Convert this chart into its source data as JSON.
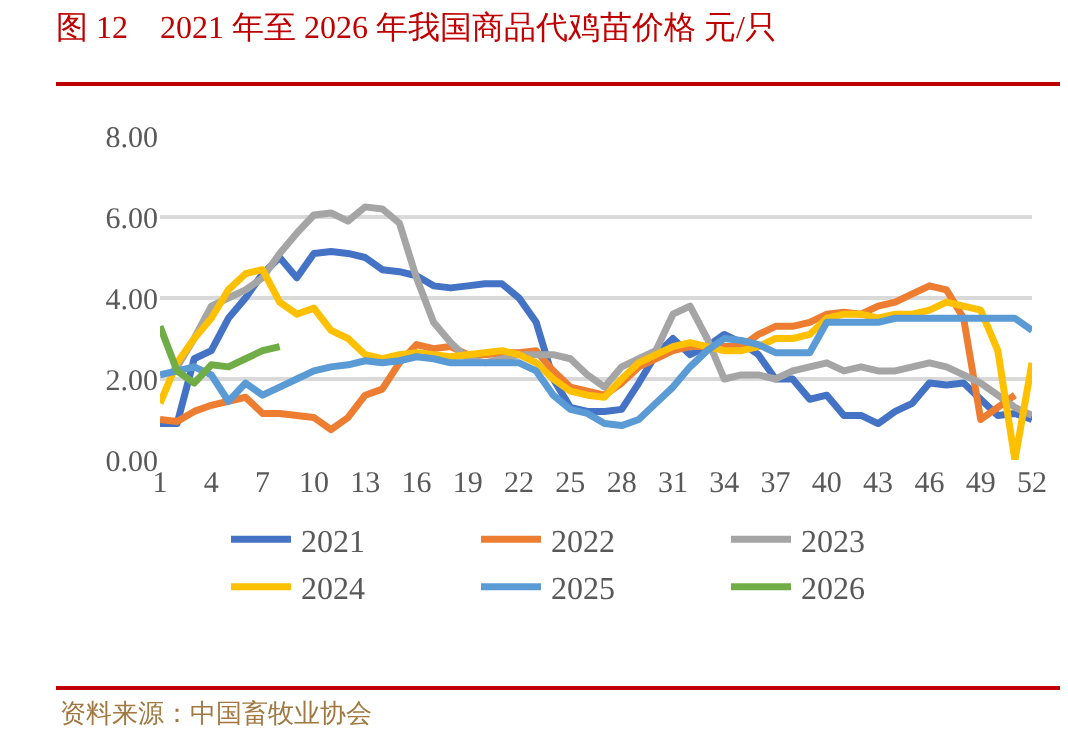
{
  "chart_data": {
    "type": "line",
    "title": "图 12　2021 年至 2026 年我国商品代鸡苗价格 元/只",
    "categories": [
      "1",
      null,
      null,
      "4",
      null,
      null,
      "7",
      null,
      null,
      "10",
      null,
      null,
      "13",
      null,
      null,
      "16",
      null,
      null,
      "19",
      null,
      null,
      "22",
      null,
      null,
      "25",
      null,
      null,
      "28",
      null,
      null,
      "31",
      null,
      null,
      "34",
      null,
      null,
      "37",
      null,
      null,
      "40",
      null,
      null,
      "43",
      null,
      null,
      "46",
      null,
      null,
      "49",
      null,
      null,
      "52"
    ],
    "series": [
      {
        "name": "2021",
        "color": "#4472c4",
        "values": [
          0.9,
          0.9,
          2.5,
          2.7,
          3.5,
          4.0,
          4.6,
          5.0,
          4.5,
          5.1,
          5.15,
          5.1,
          5.0,
          4.7,
          4.65,
          4.55,
          4.3,
          4.25,
          4.3,
          4.35,
          4.35,
          4.0,
          3.4,
          2.0,
          1.3,
          1.2,
          1.2,
          1.25,
          1.9,
          2.6,
          3.0,
          2.6,
          2.8,
          3.1,
          2.9,
          2.6,
          2.0,
          2.0,
          1.5,
          1.6,
          1.1,
          1.1,
          0.9,
          1.2,
          1.4,
          1.9,
          1.85,
          1.9,
          1.5,
          1.1,
          1.15,
          1.0
        ]
      },
      {
        "name": "2022",
        "color": "#ed7d31",
        "values": [
          1.0,
          0.95,
          1.2,
          1.35,
          1.45,
          1.55,
          1.15,
          1.15,
          1.1,
          1.05,
          0.75,
          1.05,
          1.6,
          1.75,
          2.4,
          2.85,
          2.75,
          2.8,
          2.6,
          2.6,
          2.65,
          2.65,
          2.7,
          2.2,
          1.8,
          1.7,
          1.6,
          1.9,
          2.3,
          2.5,
          2.7,
          2.8,
          2.8,
          2.8,
          2.8,
          3.1,
          3.3,
          3.3,
          3.4,
          3.6,
          3.65,
          3.6,
          3.8,
          3.9,
          4.1,
          4.3,
          4.2,
          3.5,
          1.0,
          1.3,
          1.6,
          null
        ]
      },
      {
        "name": "2023",
        "color": "#a5a5a5",
        "values": [
          null,
          2.3,
          3.0,
          3.8,
          4.0,
          4.2,
          4.5,
          5.1,
          5.6,
          6.05,
          6.1,
          5.9,
          6.25,
          6.2,
          5.85,
          4.5,
          3.4,
          2.9,
          2.5,
          2.4,
          2.5,
          2.6,
          2.6,
          2.6,
          2.5,
          2.1,
          1.8,
          2.3,
          2.5,
          2.7,
          3.6,
          3.8,
          3.0,
          2.0,
          2.1,
          2.1,
          2.0,
          2.2,
          2.3,
          2.4,
          2.2,
          2.3,
          2.2,
          2.2,
          2.3,
          2.4,
          2.3,
          2.1,
          1.9,
          1.6,
          1.3,
          1.1
        ]
      },
      {
        "name": "2024",
        "color": "#ffc000",
        "values": [
          1.4,
          2.4,
          3.0,
          3.5,
          4.2,
          4.6,
          4.7,
          3.9,
          3.6,
          3.75,
          3.2,
          3.0,
          2.6,
          2.5,
          2.6,
          2.65,
          2.6,
          2.55,
          2.6,
          2.65,
          2.7,
          2.6,
          2.4,
          2.0,
          1.7,
          1.6,
          1.55,
          2.0,
          2.4,
          2.6,
          2.8,
          2.9,
          2.8,
          2.7,
          2.7,
          2.8,
          3.0,
          3.0,
          3.1,
          3.5,
          3.6,
          3.6,
          3.5,
          3.6,
          3.6,
          3.7,
          3.9,
          3.8,
          3.7,
          2.7,
          0.0,
          2.4
        ]
      },
      {
        "name": "2025",
        "color": "#5b9bd5",
        "values": [
          2.1,
          2.2,
          2.3,
          2.1,
          1.45,
          1.9,
          1.6,
          1.8,
          2.0,
          2.2,
          2.3,
          2.35,
          2.45,
          2.4,
          2.45,
          2.55,
          2.5,
          2.4,
          2.4,
          2.4,
          2.4,
          2.4,
          2.2,
          1.6,
          1.25,
          1.15,
          0.9,
          0.85,
          1.0,
          1.4,
          1.8,
          2.3,
          2.7,
          3.0,
          2.95,
          2.85,
          2.65,
          2.65,
          2.65,
          3.4,
          3.4,
          3.4,
          3.4,
          3.5,
          3.5,
          3.5,
          3.5,
          3.5,
          3.5,
          3.5,
          3.5,
          3.2
        ]
      },
      {
        "name": "2026",
        "color": "#70ad47",
        "values": [
          3.3,
          2.2,
          1.9,
          2.35,
          2.3,
          2.5,
          2.7,
          2.8,
          null,
          null,
          null,
          null,
          null,
          null,
          null,
          null,
          null,
          null,
          null,
          null,
          null,
          null,
          null,
          null,
          null,
          null,
          null,
          null,
          null,
          null,
          null,
          null,
          null,
          null,
          null,
          null,
          null,
          null,
          null,
          null,
          null,
          null,
          null,
          null,
          null,
          null,
          null,
          null,
          null,
          null,
          null,
          null
        ]
      }
    ],
    "ylim": [
      0,
      8
    ],
    "yticks": [
      {
        "value": 0,
        "label": "0.00"
      },
      {
        "value": 2,
        "label": "2.00"
      },
      {
        "value": 4,
        "label": "4.00"
      },
      {
        "value": 6,
        "label": "6.00"
      },
      {
        "value": 8,
        "label": "8.00"
      }
    ],
    "grid": "y",
    "legend": "bottom",
    "line_style": "solid",
    "marker": "none",
    "annotations": [
      "资料来源：中国畜牧业协会"
    ]
  }
}
